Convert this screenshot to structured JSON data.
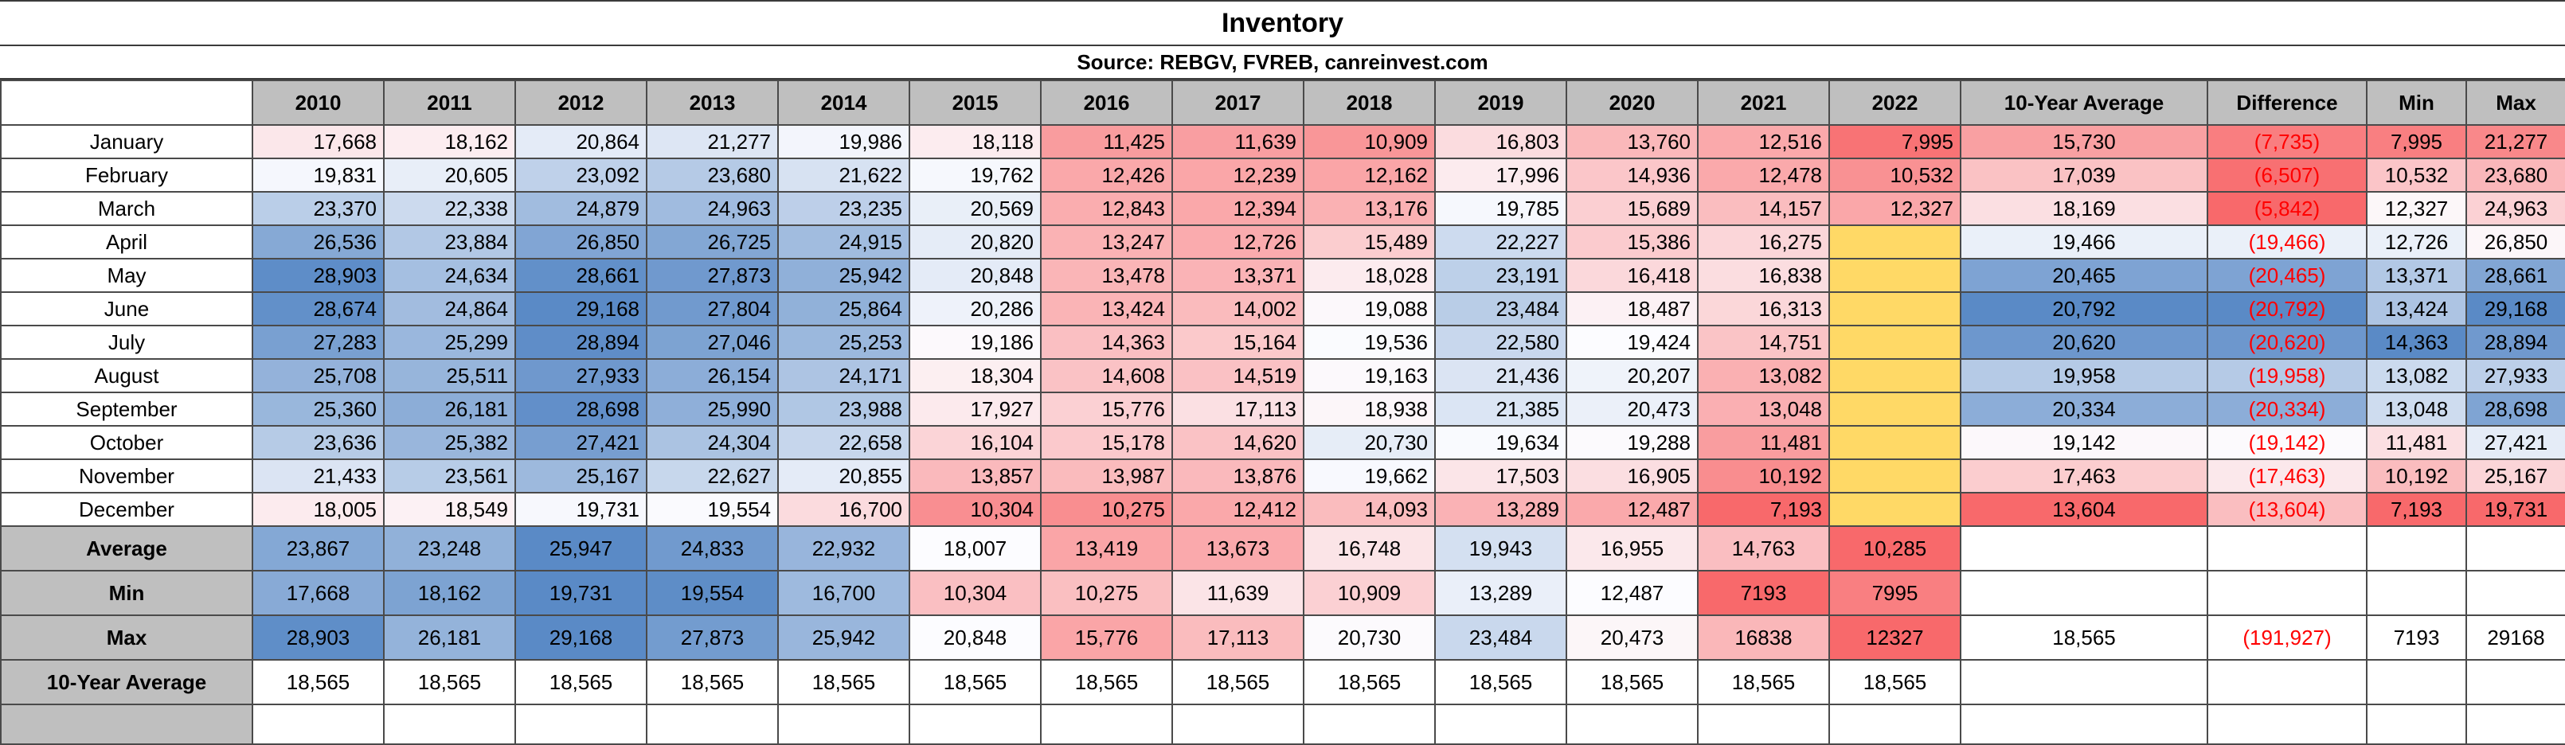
{
  "title": "Inventory",
  "subtitle": "Source: REBGV, FVREB, canreinvest.com",
  "headers": [
    "2010",
    "2011",
    "2012",
    "2013",
    "2014",
    "2015",
    "2016",
    "2017",
    "2018",
    "2019",
    "2020",
    "2021",
    "2022",
    "10-Year Average",
    "Difference",
    "Min",
    "Max"
  ],
  "months": [
    {
      "name": "January",
      "values": [
        "17,668",
        "18,162",
        "20,864",
        "21,277",
        "19,986",
        "18,118",
        "11,425",
        "11,639",
        "10,909",
        "16,803",
        "13,760",
        "12,516",
        "7,995"
      ],
      "avg": "15,730",
      "diff": "(7,735)",
      "min": "7,995",
      "max": "21,277"
    },
    {
      "name": "February",
      "values": [
        "19,831",
        "20,605",
        "23,092",
        "23,680",
        "21,622",
        "19,762",
        "12,426",
        "12,239",
        "12,162",
        "17,996",
        "14,936",
        "12,478",
        "10,532"
      ],
      "avg": "17,039",
      "diff": "(6,507)",
      "min": "10,532",
      "max": "23,680"
    },
    {
      "name": "March",
      "values": [
        "23,370",
        "22,338",
        "24,879",
        "24,963",
        "23,235",
        "20,569",
        "12,843",
        "12,394",
        "13,176",
        "19,785",
        "15,689",
        "14,157",
        "12,327"
      ],
      "avg": "18,169",
      "diff": "(5,842)",
      "min": "12,327",
      "max": "24,963"
    },
    {
      "name": "April",
      "values": [
        "26,536",
        "23,884",
        "26,850",
        "26,725",
        "24,915",
        "20,820",
        "13,247",
        "12,726",
        "15,489",
        "22,227",
        "15,386",
        "16,275",
        ""
      ],
      "avg": "19,466",
      "diff": "(19,466)",
      "min": "12,726",
      "max": "26,850"
    },
    {
      "name": "May",
      "values": [
        "28,903",
        "24,634",
        "28,661",
        "27,873",
        "25,942",
        "20,848",
        "13,478",
        "13,371",
        "18,028",
        "23,191",
        "16,418",
        "16,838",
        ""
      ],
      "avg": "20,465",
      "diff": "(20,465)",
      "min": "13,371",
      "max": "28,661"
    },
    {
      "name": "June",
      "values": [
        "28,674",
        "24,864",
        "29,168",
        "27,804",
        "25,864",
        "20,286",
        "13,424",
        "14,002",
        "19,088",
        "23,484",
        "18,487",
        "16,313",
        ""
      ],
      "avg": "20,792",
      "diff": "(20,792)",
      "min": "13,424",
      "max": "29,168"
    },
    {
      "name": "July",
      "values": [
        "27,283",
        "25,299",
        "28,894",
        "27,046",
        "25,253",
        "19,186",
        "14,363",
        "15,164",
        "19,536",
        "22,580",
        "19,424",
        "14,751",
        ""
      ],
      "avg": "20,620",
      "diff": "(20,620)",
      "min": "14,363",
      "max": "28,894"
    },
    {
      "name": "August",
      "values": [
        "25,708",
        "25,511",
        "27,933",
        "26,154",
        "24,171",
        "18,304",
        "14,608",
        "14,519",
        "19,163",
        "21,436",
        "20,207",
        "13,082",
        ""
      ],
      "avg": "19,958",
      "diff": "(19,958)",
      "min": "13,082",
      "max": "27,933"
    },
    {
      "name": "September",
      "values": [
        "25,360",
        "26,181",
        "28,698",
        "25,990",
        "23,988",
        "17,927",
        "15,776",
        "17,113",
        "18,938",
        "21,385",
        "20,473",
        "13,048",
        ""
      ],
      "avg": "20,334",
      "diff": "(20,334)",
      "min": "13,048",
      "max": "28,698"
    },
    {
      "name": "October",
      "values": [
        "23,636",
        "25,382",
        "27,421",
        "24,304",
        "22,658",
        "16,104",
        "15,178",
        "14,620",
        "20,730",
        "19,634",
        "19,288",
        "11,481",
        ""
      ],
      "avg": "19,142",
      "diff": "(19,142)",
      "min": "11,481",
      "max": "27,421"
    },
    {
      "name": "November",
      "values": [
        "21,433",
        "23,561",
        "25,167",
        "22,627",
        "20,855",
        "13,857",
        "13,987",
        "13,876",
        "19,662",
        "17,503",
        "16,905",
        "10,192",
        ""
      ],
      "avg": "17,463",
      "diff": "(17,463)",
      "min": "10,192",
      "max": "25,167"
    },
    {
      "name": "December",
      "values": [
        "18,005",
        "18,549",
        "19,731",
        "19,554",
        "16,700",
        "10,304",
        "10,275",
        "12,412",
        "14,093",
        "13,289",
        "12,487",
        "7,193",
        ""
      ],
      "avg": "13,604",
      "diff": "(13,604)",
      "min": "7,193",
      "max": "19,731"
    }
  ],
  "summary": [
    {
      "label": "Average",
      "values": [
        "23,867",
        "23,248",
        "25,947",
        "24,833",
        "22,932",
        "18,007",
        "13,419",
        "13,673",
        "16,748",
        "19,943",
        "16,955",
        "14,763",
        "10,285"
      ],
      "avg": "",
      "diff": "",
      "min": "",
      "max": ""
    },
    {
      "label": "Min",
      "values": [
        "17,668",
        "18,162",
        "19,731",
        "19,554",
        "16,700",
        "10,304",
        "10,275",
        "11,639",
        "10,909",
        "13,289",
        "12,487",
        "7193",
        "7995"
      ],
      "avg": "",
      "diff": "",
      "min": "",
      "max": ""
    },
    {
      "label": "Max",
      "values": [
        "28,903",
        "26,181",
        "29,168",
        "27,873",
        "25,942",
        "20,848",
        "15,776",
        "17,113",
        "20,730",
        "23,484",
        "20,473",
        "16838",
        "12327"
      ],
      "avg": "18,565",
      "diff": "(191,927)",
      "min": "7193",
      "max": "29168"
    },
    {
      "label": "10-Year Average",
      "values": [
        "18,565",
        "18,565",
        "18,565",
        "18,565",
        "18,565",
        "18,565",
        "18,565",
        "18,565",
        "18,565",
        "18,565",
        "18,565",
        "18,565",
        "18,565"
      ],
      "avg": "",
      "diff": "",
      "min": "",
      "max": ""
    }
  ],
  "colors": {
    "header_gray": "#bfbfbf",
    "scale_low": "#f8696b",
    "scale_mid": "#fcfcff",
    "scale_high": "#5a8ac6",
    "empty_2022": "#ffd966",
    "negative_text": "#ff0000"
  }
}
